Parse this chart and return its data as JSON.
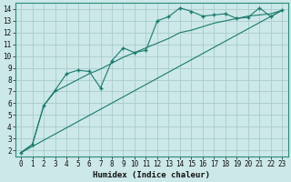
{
  "title": "",
  "xlabel": "Humidex (Indice chaleur)",
  "ylabel": "",
  "bg_color": "#cce8e8",
  "grid_color": "#aacccc",
  "line_color": "#1a7a6e",
  "xlim": [
    -0.5,
    23.5
  ],
  "ylim": [
    1.5,
    14.5
  ],
  "xticks": [
    0,
    1,
    2,
    3,
    4,
    5,
    6,
    7,
    8,
    9,
    10,
    11,
    12,
    13,
    14,
    15,
    16,
    17,
    18,
    19,
    20,
    21,
    22,
    23
  ],
  "yticks": [
    2,
    3,
    4,
    5,
    6,
    7,
    8,
    9,
    10,
    11,
    12,
    13,
    14
  ],
  "series1_x": [
    0,
    1,
    2,
    3,
    4,
    5,
    6,
    7,
    8,
    9,
    10,
    11,
    12,
    13,
    14,
    15,
    16,
    17,
    18,
    19,
    20,
    21,
    22,
    23
  ],
  "series1_y": [
    1.8,
    2.5,
    5.8,
    7.1,
    8.5,
    8.8,
    8.7,
    7.3,
    9.6,
    10.7,
    10.3,
    10.5,
    13.0,
    13.35,
    14.1,
    13.8,
    13.4,
    13.5,
    13.6,
    13.2,
    13.3,
    14.1,
    13.35,
    13.9
  ],
  "series2_x": [
    0,
    1,
    2,
    3,
    4,
    5,
    6,
    7,
    8,
    9,
    10,
    11,
    12,
    13,
    14,
    15,
    16,
    17,
    18,
    19,
    20,
    21,
    22,
    23
  ],
  "series2_y": [
    1.8,
    2.5,
    5.8,
    7.0,
    7.5,
    8.0,
    8.5,
    8.9,
    9.4,
    9.9,
    10.3,
    10.7,
    11.1,
    11.5,
    12.0,
    12.2,
    12.5,
    12.8,
    13.0,
    13.2,
    13.4,
    13.5,
    13.6,
    13.9
  ],
  "series3_x": [
    0,
    23
  ],
  "series3_y": [
    1.8,
    13.9
  ],
  "marker_series1_x": [
    0,
    1,
    2,
    3,
    4,
    5,
    6,
    7,
    8,
    9,
    10,
    11,
    12,
    13,
    14,
    15,
    16,
    17,
    18,
    19,
    20,
    21,
    22,
    23
  ],
  "marker_series1_y": [
    1.8,
    2.5,
    5.8,
    7.1,
    8.5,
    8.8,
    8.7,
    7.3,
    9.6,
    10.7,
    10.3,
    10.5,
    13.0,
    13.35,
    14.1,
    13.8,
    13.4,
    13.5,
    13.6,
    13.2,
    13.3,
    14.1,
    13.35,
    13.9
  ]
}
